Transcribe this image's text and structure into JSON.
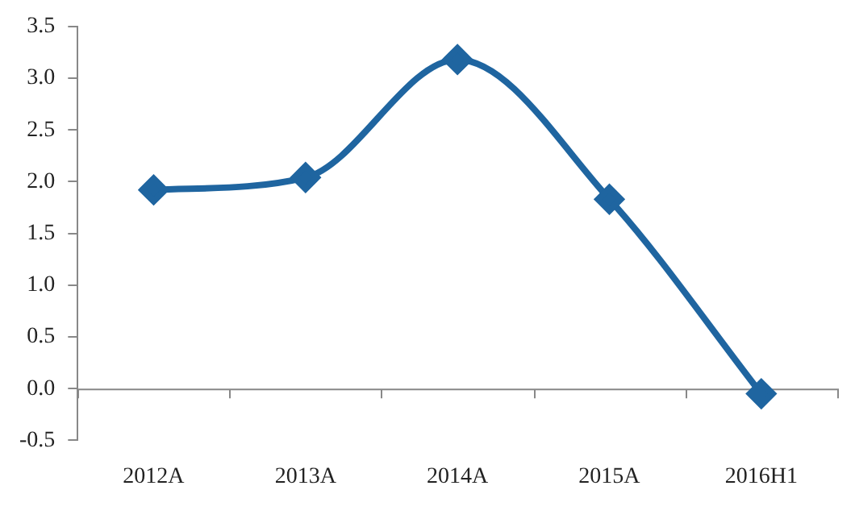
{
  "chart_data": {
    "type": "line",
    "categories": [
      "2012A",
      "2013A",
      "2014A",
      "2015A",
      "2016H1"
    ],
    "values": [
      1.92,
      2.04,
      3.18,
      1.83,
      -0.05
    ],
    "color": "#1f65a0",
    "ylim": [
      -0.5,
      3.5
    ],
    "yticks": [
      {
        "value": -0.5,
        "label": "-0.5"
      },
      {
        "value": 0,
        "label": "0.0"
      },
      {
        "value": 0.5,
        "label": "0.5"
      },
      {
        "value": 1,
        "label": "1.0"
      },
      {
        "value": 1.5,
        "label": "1.5"
      },
      {
        "value": 2,
        "label": "2.0"
      },
      {
        "value": 2.5,
        "label": "2.5"
      },
      {
        "value": 3,
        "label": "3.0"
      },
      {
        "value": 3.5,
        "label": "3.5"
      }
    ],
    "marker": "diamond"
  }
}
